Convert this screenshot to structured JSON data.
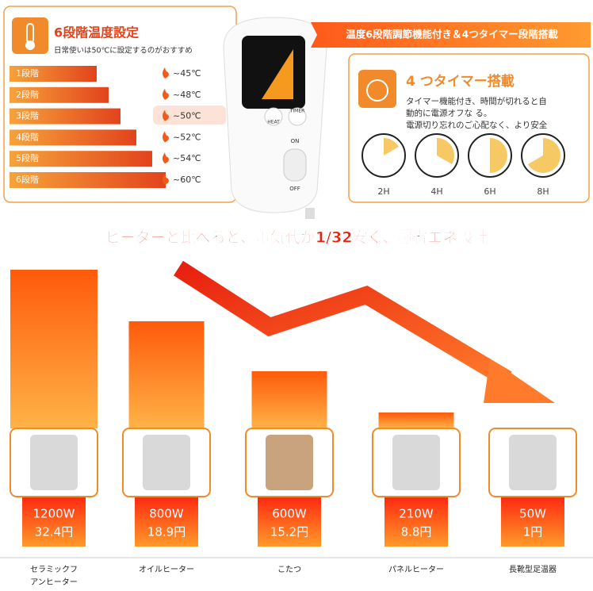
{
  "temperature_panel": {
    "title": "6段階温度設定",
    "subtitle": "日常使いは50℃に設定するのがおすすめ",
    "levels": [
      {
        "label": "1段階",
        "temp": "~45℃"
      },
      {
        "label": "2段階",
        "temp": "~48℃"
      },
      {
        "label": "3段階",
        "temp": "~50℃"
      },
      {
        "label": "4段階",
        "temp": "~52℃"
      },
      {
        "label": "5段階",
        "temp": "~54℃"
      },
      {
        "label": "6段階",
        "temp": "~60℃"
      }
    ]
  },
  "remote": {
    "buttons": [
      "HEAT",
      "TIMER"
    ],
    "switch": [
      "ON",
      "OFF"
    ]
  },
  "banner": "温度6段階調節機能付き＆4つタイマー段階搭載",
  "timer_panel": {
    "title": "4 つタイマー搭載",
    "lines": [
      "タイマー機能付き、時間が切れると自",
      "動的に電源オフな る。",
      "電源切り忘れのご心配なく、より安全"
    ],
    "clocks": [
      "2H",
      "4H",
      "6H",
      "8H"
    ]
  },
  "headline": "ヒーターと比べると、電気代が1/32安く、超省エネ設計",
  "comparison": [
    {
      "watt": "1200W",
      "cost": "32.4円",
      "name": [
        "セラミックフ",
        "アンヒーター"
      ]
    },
    {
      "watt": "800W",
      "cost": "18.9円",
      "name": [
        "オイルヒーター"
      ]
    },
    {
      "watt": "600W",
      "cost": "15.2円",
      "name": [
        "こたつ"
      ]
    },
    {
      "watt": "210W",
      "cost": "8.8円",
      "name": [
        "パネルヒーター"
      ]
    },
    {
      "watt": "50W",
      "cost": "1円",
      "name": [
        "長靴型足温器"
      ]
    }
  ]
}
